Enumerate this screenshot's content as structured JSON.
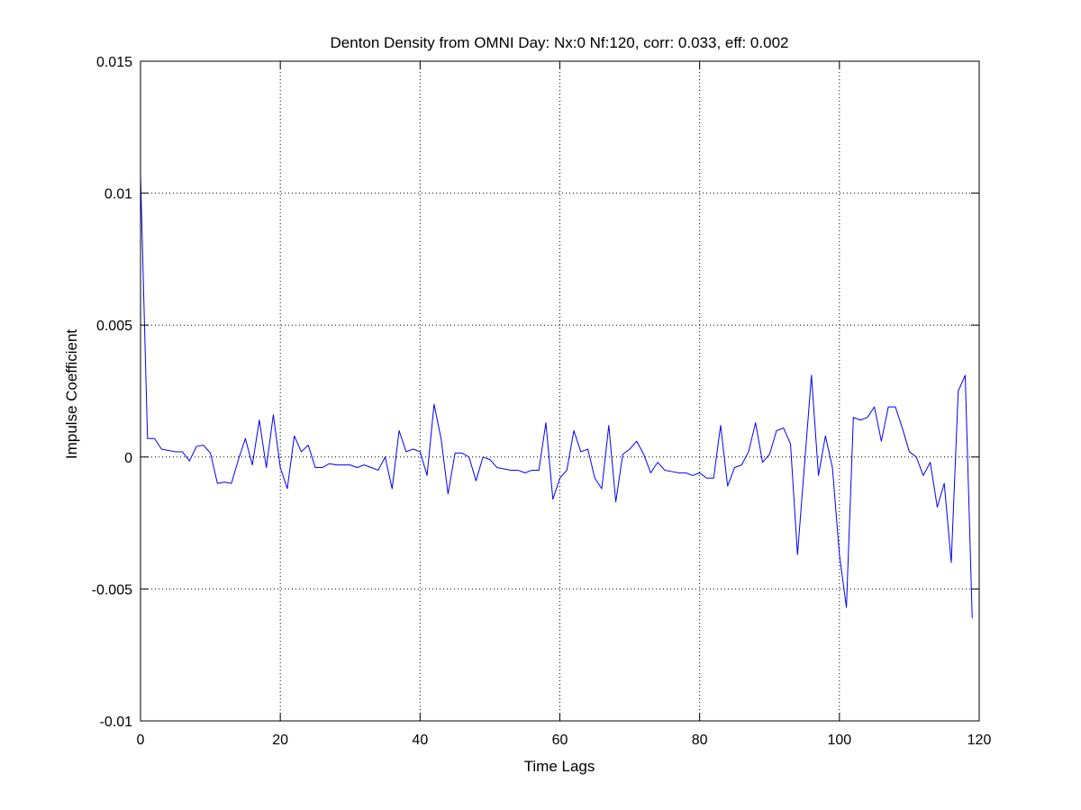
{
  "chart_data": {
    "type": "line",
    "title": "Denton Density from OMNI Day: Nx:0 Nf:120, corr: 0.033, eff: 0.002",
    "xlabel": "Time Lags",
    "ylabel": "Impulse Coefficient",
    "xlim": [
      0,
      120
    ],
    "ylim": [
      -0.01,
      0.015
    ],
    "xticks": [
      0,
      20,
      40,
      60,
      80,
      100,
      120
    ],
    "yticks": [
      -0.01,
      -0.005,
      0,
      0.005,
      0.01,
      0.015
    ],
    "xtick_labels": [
      "0",
      "20",
      "40",
      "60",
      "80",
      "100",
      "120"
    ],
    "ytick_labels": [
      "-0.01",
      "-0.005",
      "0",
      "0.005",
      "0.01",
      "0.015"
    ],
    "grid": true,
    "grid_style": "dotted",
    "line_color": "#0000ff",
    "series": [
      {
        "x": [
          0,
          1,
          2,
          3,
          4,
          5,
          6,
          7,
          8,
          9,
          10,
          11,
          12,
          13,
          14,
          15,
          16,
          17,
          18,
          19,
          20,
          21,
          22,
          23,
          24,
          25,
          26,
          27,
          28,
          29,
          30,
          31,
          32,
          33,
          34,
          35,
          36,
          37,
          38,
          39,
          40,
          41,
          42,
          43,
          44,
          45,
          46,
          47,
          48,
          49,
          50,
          51,
          52,
          53,
          54,
          55,
          56,
          57,
          58,
          59,
          60,
          61,
          62,
          63,
          64,
          65,
          66,
          67,
          68,
          69,
          70,
          71,
          72,
          73,
          74,
          75,
          76,
          77,
          78,
          79,
          80,
          81,
          82,
          83,
          84,
          85,
          86,
          87,
          88,
          89,
          90,
          91,
          92,
          93,
          94,
          95,
          96,
          97,
          98,
          99,
          100,
          101,
          102,
          103,
          104,
          105,
          106,
          107,
          108,
          109,
          110,
          111,
          112,
          113,
          114,
          115,
          116,
          117,
          118,
          119
        ],
        "y": [
          0.0107,
          0.0007,
          0.0007,
          0.0003,
          0.00025,
          0.0002,
          0.0002,
          -0.00015,
          0.0004,
          0.00045,
          0.00015,
          -0.001,
          -0.00095,
          -0.001,
          -0.0001,
          0.0007,
          -0.0003,
          0.0014,
          -0.0004,
          0.0016,
          -0.0004,
          -0.0012,
          0.0008,
          0.0002,
          0.00045,
          -0.0004,
          -0.0004,
          -0.00025,
          -0.0003,
          -0.0003,
          -0.0003,
          -0.0004,
          -0.0003,
          -0.0004,
          -0.0005,
          0.0,
          -0.0012,
          0.001,
          0.0002,
          0.0003,
          0.0002,
          -0.0007,
          0.002,
          0.0007,
          -0.0014,
          0.00015,
          0.00015,
          0.0,
          -0.0009,
          0.0,
          -0.0001,
          -0.0004,
          -0.00045,
          -0.0005,
          -0.0005,
          -0.0006,
          -0.0005,
          -0.0005,
          0.0013,
          -0.0016,
          -0.0008,
          -0.0005,
          0.001,
          0.0002,
          0.0003,
          -0.0008,
          -0.0012,
          0.0012,
          -0.0017,
          0.0001,
          0.0003,
          0.0006,
          0.0001,
          -0.0006,
          -0.0002,
          -0.0005,
          -0.00055,
          -0.0006,
          -0.0006,
          -0.0007,
          -0.0006,
          -0.0008,
          -0.0008,
          0.0012,
          -0.0011,
          -0.0004,
          -0.0003,
          0.0002,
          0.0013,
          -0.0002,
          0.0001,
          0.001,
          0.0011,
          0.0005,
          -0.0037,
          -0.0003,
          0.0031,
          -0.0007,
          0.0008,
          -0.0004,
          -0.0037,
          -0.0057,
          0.0015,
          0.0014,
          0.0015,
          0.0019,
          0.0006,
          0.0019,
          0.0019,
          0.0011,
          0.0002,
          0.0,
          -0.0007,
          -0.0002,
          -0.0019,
          -0.001,
          -0.004,
          0.0025,
          0.0031,
          -0.0061
        ]
      }
    ]
  }
}
